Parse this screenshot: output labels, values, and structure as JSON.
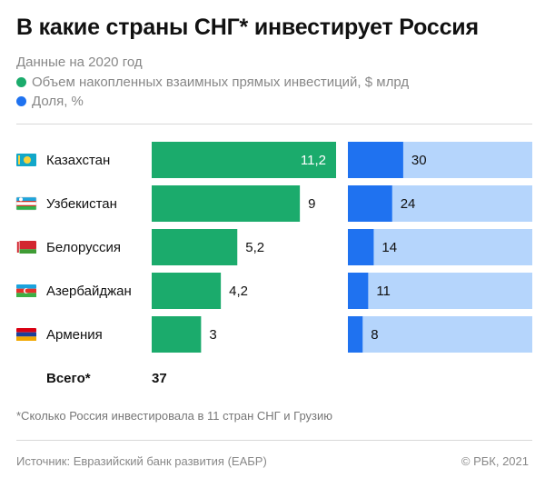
{
  "title": "В какие страны СНГ* инвестирует Россия",
  "subtitle": "Данные на 2020 год",
  "colors": {
    "investment": "#1bab6c",
    "share": "#1f72f0",
    "share_bg": "#b5d5fc"
  },
  "chart_data": {
    "type": "bar",
    "categories": [
      "Казахстан",
      "Узбекистан",
      "Белоруссия",
      "Азербайджан",
      "Армения"
    ],
    "flags": [
      "flag-kazakhstan-icon",
      "flag-uzbekistan-icon",
      "flag-belarus-icon",
      "flag-azerbaijan-icon",
      "flag-armenia-icon"
    ],
    "series": [
      {
        "name": "Объем накопленных взаимных прямых инвестиций, $ млрд",
        "values": [
          11.2,
          9,
          5.2,
          4.2,
          3
        ],
        "labels": [
          "11,2",
          "9",
          "5,2",
          "4,2",
          "3"
        ],
        "xlim": [
          0,
          11.2
        ]
      },
      {
        "name": "Доля, %",
        "values": [
          30,
          24,
          14,
          11,
          8
        ],
        "labels": [
          "30",
          "24",
          "14",
          "11",
          "8"
        ],
        "xlim": [
          0,
          100
        ]
      }
    ]
  },
  "total": {
    "label": "Всего*",
    "value": "37"
  },
  "footnote": "*Сколько Россия инвестировала в 11 стран СНГ и Грузию",
  "source": "Источник: Евразийский банк развития (ЕАБР)",
  "copyright": "©  РБК, 2021"
}
